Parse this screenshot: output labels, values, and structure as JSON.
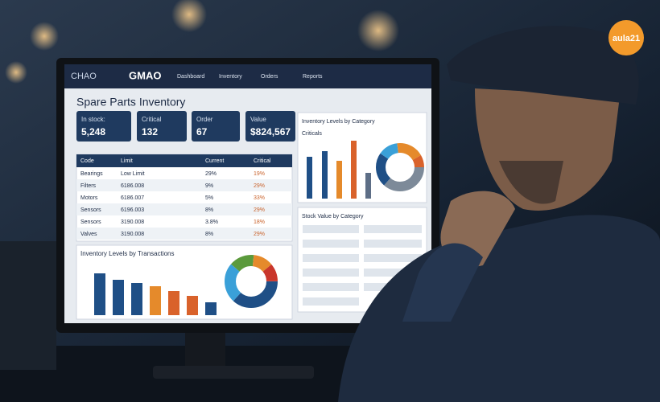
{
  "logo": "aula21",
  "app": {
    "brand_left": "CHAO",
    "brand_right": "GMAO",
    "nav": [
      "Dashboard",
      "Inventory",
      "Orders",
      "Reports"
    ]
  },
  "page_title": "Spare Parts Inventory",
  "kpis": [
    {
      "label": "In stock:",
      "value": "5,248"
    },
    {
      "label": "Critical",
      "value": "132"
    },
    {
      "label": "Order",
      "value": "67"
    },
    {
      "label": "Value",
      "value": "$824,567"
    }
  ],
  "table": {
    "header": [
      "Code",
      "Limit",
      "Current",
      "Critical"
    ],
    "rows": [
      [
        "Bearings",
        "Low Limit",
        "29%",
        "19%"
      ],
      [
        "Filters",
        "6186.008",
        "9%",
        "29%"
      ],
      [
        "Motors",
        "6186.007",
        "5%",
        "33%"
      ],
      [
        "Sensors",
        "6196.003",
        "8%",
        "29%"
      ],
      [
        "Sensors",
        "3190.008",
        "3.8%",
        "18%"
      ],
      [
        "Valves",
        "3190.008",
        "8%",
        "29%"
      ]
    ]
  },
  "panels": {
    "transactions": "Inventory Levels by Transactions",
    "category": "Inventory Levels by Category",
    "critical": "Criticals",
    "stock_value": "Stock Value by Category"
  }
}
